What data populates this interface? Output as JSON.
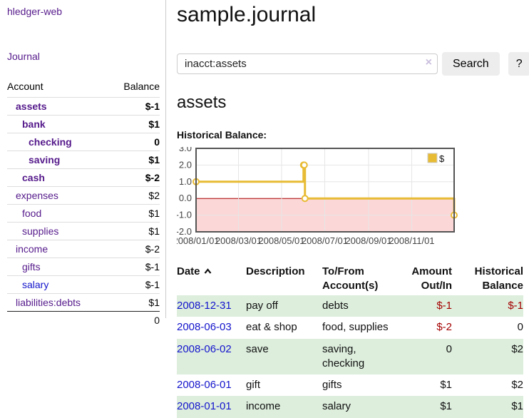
{
  "brand": "hledger-web",
  "nav": {
    "journal": "Journal"
  },
  "sidebar": {
    "col_account": "Account",
    "col_balance": "Balance",
    "accounts": [
      {
        "name": "assets",
        "balance": "$-1"
      },
      {
        "name": "bank",
        "balance": "$1"
      },
      {
        "name": "checking",
        "balance": "0"
      },
      {
        "name": "saving",
        "balance": "$1"
      },
      {
        "name": "cash",
        "balance": "$-2"
      },
      {
        "name": "expenses",
        "balance": "$2"
      },
      {
        "name": "food",
        "balance": "$1"
      },
      {
        "name": "supplies",
        "balance": "$1"
      },
      {
        "name": "income",
        "balance": "$-2"
      },
      {
        "name": "gifts",
        "balance": "$-1"
      },
      {
        "name": "salary",
        "balance": "$-1"
      },
      {
        "name": "liabilities:debts",
        "balance": "$1"
      }
    ],
    "total": "0"
  },
  "main": {
    "title": "sample.journal",
    "search": {
      "value": "inacct:assets",
      "clear_icon": "×",
      "search_button": "Search",
      "help_button": "?"
    },
    "account_heading": "assets",
    "section_label": "Historical Balance:"
  },
  "chart_data": {
    "type": "line",
    "title": "Historical Balance:",
    "step": true,
    "series": [
      {
        "name": "$",
        "color": "#e8bb34",
        "points": [
          [
            "2008-01-01",
            1
          ],
          [
            "2008-06-01",
            2
          ],
          [
            "2008-06-02",
            2
          ],
          [
            "2008-06-03",
            0
          ],
          [
            "2008-12-31",
            -1
          ]
        ]
      }
    ],
    "xrange": [
      "2008-01-01",
      "2008-12-31"
    ],
    "ylim": [
      -2,
      3
    ],
    "yticks": [
      3,
      2,
      1,
      0,
      -1,
      -2
    ],
    "xticks": [
      "2008/01/01",
      "2008/03/01",
      "2008/05/01",
      "2008/07/01",
      "2008/09/01",
      "2008/11/01"
    ],
    "legend": {
      "label": "$",
      "position": "top-right"
    },
    "grid": true,
    "colors": {
      "negative_region": "#fcd7d7",
      "zero_line": "#aa0000",
      "grid": "#e6e6e6",
      "border": "#545454"
    }
  },
  "register": {
    "col_date": "Date",
    "col_description": "Description",
    "col_accounts": "To/From Account(s)",
    "col_amount": "Amount Out/In",
    "col_balance": "Historical Balance",
    "rows": [
      {
        "date": "2008-12-31",
        "description": "pay off",
        "accounts": "debts",
        "amount": "$-1",
        "balance": "$-1"
      },
      {
        "date": "2008-06-03",
        "description": "eat & shop",
        "accounts": "food, supplies",
        "amount": "$-2",
        "balance": "0"
      },
      {
        "date": "2008-06-02",
        "description": "save",
        "accounts": "saving,\nchecking",
        "amount": "0",
        "balance": "$2"
      },
      {
        "date": "2008-06-01",
        "description": "gift",
        "accounts": "gifts",
        "amount": "$1",
        "balance": "$2"
      },
      {
        "date": "2008-01-01",
        "description": "income",
        "accounts": "salary",
        "amount": "$1",
        "balance": "$1"
      }
    ]
  },
  "colors": {
    "link_purple": "#551a8b",
    "link_blue": "#1414cc",
    "negative_strong": "#a40000",
    "negative_muted": "#c17979",
    "row_green": "#ddeedd",
    "series_gold": "#e8bb34"
  }
}
